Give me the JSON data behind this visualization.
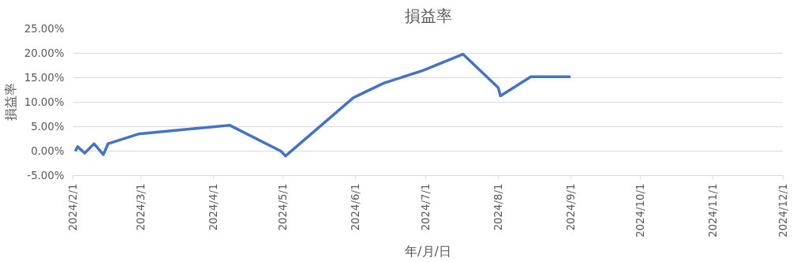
{
  "chart_data": {
    "type": "line",
    "title": "損益率",
    "xlabel": "年/月/日",
    "ylabel": "損益率",
    "x": [
      "2024-02-02",
      "2024-02-03",
      "2024-02-06",
      "2024-02-10",
      "2024-02-14",
      "2024-02-16",
      "2024-02-29",
      "2024-04-08",
      "2024-04-30",
      "2024-05-02",
      "2024-05-31",
      "2024-06-13",
      "2024-06-30",
      "2024-07-17",
      "2024-08-01",
      "2024-08-02",
      "2024-08-15",
      "2024-09-01"
    ],
    "series": [
      {
        "color": "#4472c4",
        "values": [
          0.0,
          0.9,
          -0.4,
          1.5,
          -0.7,
          1.5,
          3.5,
          5.3,
          0.0,
          -1.0,
          10.9,
          13.9,
          16.5,
          19.8,
          13.0,
          11.3,
          15.2,
          15.2
        ]
      }
    ],
    "xlim": [
      "2024-02-01",
      "2024-12-01"
    ],
    "xticks": [
      {
        "value": "2024-02-01",
        "label": "2024/2/1"
      },
      {
        "value": "2024-03-01",
        "label": "2024/3/1"
      },
      {
        "value": "2024-04-01",
        "label": "2024/4/1"
      },
      {
        "value": "2024-05-01",
        "label": "2024/5/1"
      },
      {
        "value": "2024-06-01",
        "label": "2024/6/1"
      },
      {
        "value": "2024-07-01",
        "label": "2024/7/1"
      },
      {
        "value": "2024-08-01",
        "label": "2024/8/1"
      },
      {
        "value": "2024-09-01",
        "label": "2024/9/1"
      },
      {
        "value": "2024-10-01",
        "label": "2024/10/1"
      },
      {
        "value": "2024-11-01",
        "label": "2024/11/1"
      },
      {
        "value": "2024-12-01",
        "label": "2024/12/1"
      }
    ],
    "ylim": [
      -5,
      25
    ],
    "yticks": [
      {
        "value": -5,
        "label": "-5.00%"
      },
      {
        "value": 0,
        "label": "0.00%"
      },
      {
        "value": 5,
        "label": "5.00%"
      },
      {
        "value": 10,
        "label": "10.00%"
      },
      {
        "value": 15,
        "label": "15.00%"
      },
      {
        "value": 20,
        "label": "20.00%"
      },
      {
        "value": 25,
        "label": "25.00%"
      }
    ],
    "grid": "y",
    "marker": "none",
    "line_style": "solid"
  }
}
